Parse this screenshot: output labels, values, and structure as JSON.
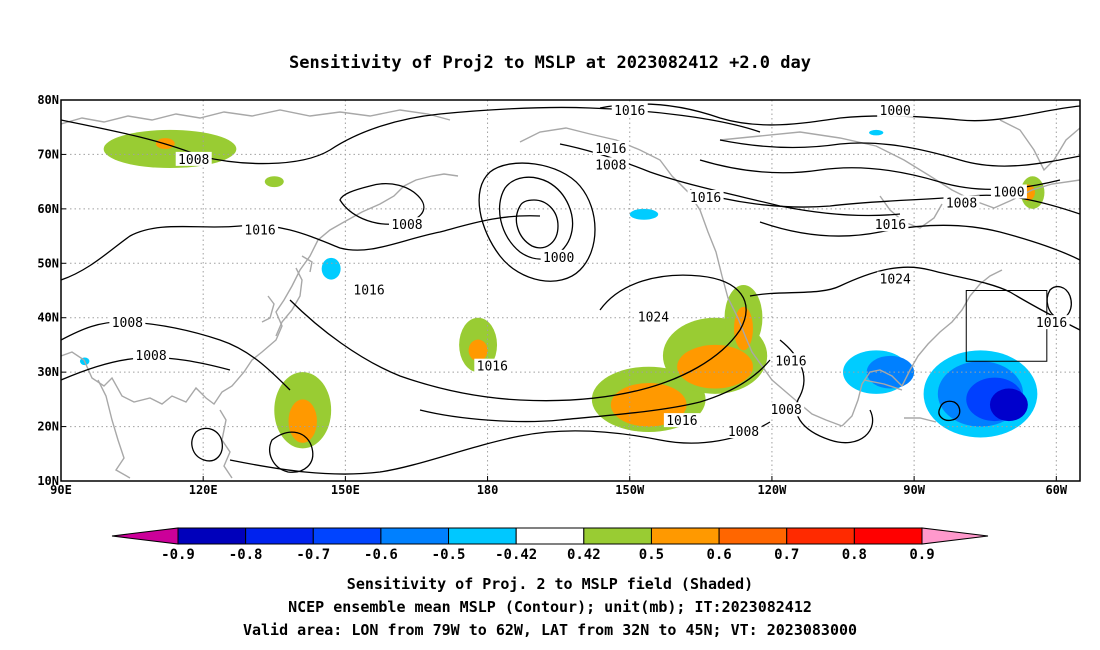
{
  "chart_data": {
    "type": "contour",
    "title": "Sensitivity of Proj2 to MSLP at 2023082412 +2.0 day",
    "x_ticks": [
      "90E",
      "120E",
      "150E",
      "180",
      "150W",
      "120W",
      "90W",
      "60W"
    ],
    "y_ticks": [
      "10N",
      "20N",
      "30N",
      "40N",
      "50N",
      "60N",
      "70N",
      "80N"
    ],
    "lon_range": [
      90,
      305
    ],
    "lat_range": [
      10,
      80
    ],
    "grid": true,
    "contour_labels": [
      {
        "text": "1016",
        "lon": 210,
        "lat": 78
      },
      {
        "text": "1000",
        "lon": 266,
        "lat": 78
      },
      {
        "text": "1016",
        "lon": 206,
        "lat": 71
      },
      {
        "text": "1008",
        "lon": 206,
        "lat": 68
      },
      {
        "text": "1008",
        "lon": 118,
        "lat": 69
      },
      {
        "text": "1016",
        "lon": 226,
        "lat": 62
      },
      {
        "text": "1000",
        "lon": 290,
        "lat": 63
      },
      {
        "text": "1008",
        "lon": 280,
        "lat": 61
      },
      {
        "text": "1016",
        "lon": 265,
        "lat": 57
      },
      {
        "text": "1016",
        "lon": 132,
        "lat": 56
      },
      {
        "text": "1008",
        "lon": 163,
        "lat": 57
      },
      {
        "text": "1000",
        "lon": 195,
        "lat": 51
      },
      {
        "text": "1024",
        "lon": 266,
        "lat": 47
      },
      {
        "text": "1016",
        "lon": 155,
        "lat": 45
      },
      {
        "text": "1024",
        "lon": 215,
        "lat": 40
      },
      {
        "text": "1016",
        "lon": 299,
        "lat": 39
      },
      {
        "text": "1008",
        "lon": 104,
        "lat": 39
      },
      {
        "text": "1008",
        "lon": 109,
        "lat": 33
      },
      {
        "text": "1016",
        "lon": 181,
        "lat": 31
      },
      {
        "text": "1016",
        "lon": 244,
        "lat": 32
      },
      {
        "text": "1008",
        "lon": 243,
        "lat": 23
      },
      {
        "text": "1016",
        "lon": 221,
        "lat": 21
      },
      {
        "text": "1008",
        "lon": 234,
        "lat": 19
      }
    ],
    "shaded_regions": [
      {
        "level": 0.5,
        "color": "#99cc33",
        "lon": 113,
        "lat": 71,
        "rx": 14,
        "ry": 3.5
      },
      {
        "level": 0.5,
        "color": "#99cc33",
        "lon": 135,
        "lat": 65,
        "rx": 2,
        "ry": 1
      },
      {
        "level": 0.5,
        "color": "#99cc33",
        "lon": 141,
        "lat": 23,
        "rx": 6,
        "ry": 7
      },
      {
        "level": 0.5,
        "color": "#99cc33",
        "lon": 178,
        "lat": 35,
        "rx": 4,
        "ry": 5
      },
      {
        "level": 0.5,
        "color": "#99cc33",
        "lon": 214,
        "lat": 25,
        "rx": 12,
        "ry": 6
      },
      {
        "level": 0.5,
        "color": "#99cc33",
        "lon": 228,
        "lat": 33,
        "rx": 11,
        "ry": 7
      },
      {
        "level": 0.5,
        "color": "#99cc33",
        "lon": 234,
        "lat": 40,
        "rx": 4,
        "ry": 6
      },
      {
        "level": 0.5,
        "color": "#99cc33",
        "lon": 295,
        "lat": 63,
        "rx": 2.5,
        "ry": 3
      },
      {
        "level": 0.6,
        "color": "#ff9900",
        "lon": 112,
        "lat": 72,
        "rx": 2,
        "ry": 1
      },
      {
        "level": 0.6,
        "color": "#ff9900",
        "lon": 141,
        "lat": 21,
        "rx": 3,
        "ry": 4
      },
      {
        "level": 0.6,
        "color": "#ff9900",
        "lon": 178,
        "lat": 34,
        "rx": 2,
        "ry": 2
      },
      {
        "level": 0.6,
        "color": "#ff9900",
        "lon": 214,
        "lat": 24,
        "rx": 8,
        "ry": 4
      },
      {
        "level": 0.6,
        "color": "#ff9900",
        "lon": 228,
        "lat": 31,
        "rx": 8,
        "ry": 4
      },
      {
        "level": 0.6,
        "color": "#ff9900",
        "lon": 234,
        "lat": 38,
        "rx": 2,
        "ry": 4
      },
      {
        "level": 0.6,
        "color": "#ff9900",
        "lon": 294,
        "lat": 63,
        "rx": 1.5,
        "ry": 1.5
      },
      {
        "level": -0.5,
        "color": "#00ccff",
        "lon": 147,
        "lat": 49,
        "rx": 2,
        "ry": 2
      },
      {
        "level": -0.5,
        "color": "#00ccff",
        "lon": 213,
        "lat": 59,
        "rx": 3,
        "ry": 1
      },
      {
        "level": -0.5,
        "color": "#00ccff",
        "lon": 226,
        "lat": 62,
        "rx": 1.5,
        "ry": 0.7
      },
      {
        "level": -0.5,
        "color": "#00ccff",
        "lon": 262,
        "lat": 74,
        "rx": 1.5,
        "ry": 0.5
      },
      {
        "level": -0.5,
        "color": "#00ccff",
        "lon": 95,
        "lat": 32,
        "rx": 1,
        "ry": 0.7
      },
      {
        "level": -0.5,
        "color": "#00ccff",
        "lon": 262,
        "lat": 30,
        "rx": 7,
        "ry": 4
      },
      {
        "level": -0.5,
        "color": "#00ccff",
        "lon": 284,
        "lat": 26,
        "rx": 12,
        "ry": 8
      },
      {
        "level": -0.6,
        "color": "#0080ff",
        "lon": 265,
        "lat": 30,
        "rx": 5,
        "ry": 3
      },
      {
        "level": -0.6,
        "color": "#0080ff",
        "lon": 284,
        "lat": 26,
        "rx": 9,
        "ry": 6
      },
      {
        "level": -0.7,
        "color": "#0040ff",
        "lon": 287,
        "lat": 25,
        "rx": 6,
        "ry": 4
      },
      {
        "level": -0.8,
        "color": "#0000cc",
        "lon": 290,
        "lat": 24,
        "rx": 4,
        "ry": 3
      }
    ],
    "valid_box": {
      "lon_min": 281,
      "lon_max": 298,
      "lat_min": 32,
      "lat_max": 45
    },
    "colorbar": {
      "labels": [
        "-0.9",
        "-0.8",
        "-0.7",
        "-0.6",
        "-0.5",
        "-0.42",
        "0.42",
        "0.5",
        "0.6",
        "0.7",
        "0.8",
        "0.9"
      ],
      "colors": [
        "#0000bb",
        "#0022ee",
        "#0044ff",
        "#0080ff",
        "#00c8ff",
        "#ffffff",
        "#99cc33",
        "#ff9900",
        "#ff6600",
        "#ff2a00",
        "#ff0000"
      ],
      "low_end_color": "#cc0099",
      "high_end_color": "#ff99cc"
    },
    "captions": [
      "Sensitivity of Proj. 2 to MSLP field (Shaded)",
      "NCEP ensemble mean MSLP (Contour); unit(mb); IT:2023082412",
      "Valid area: LON from 79W to 62W, LAT from 32N to 45N; VT: 2023083000"
    ]
  }
}
